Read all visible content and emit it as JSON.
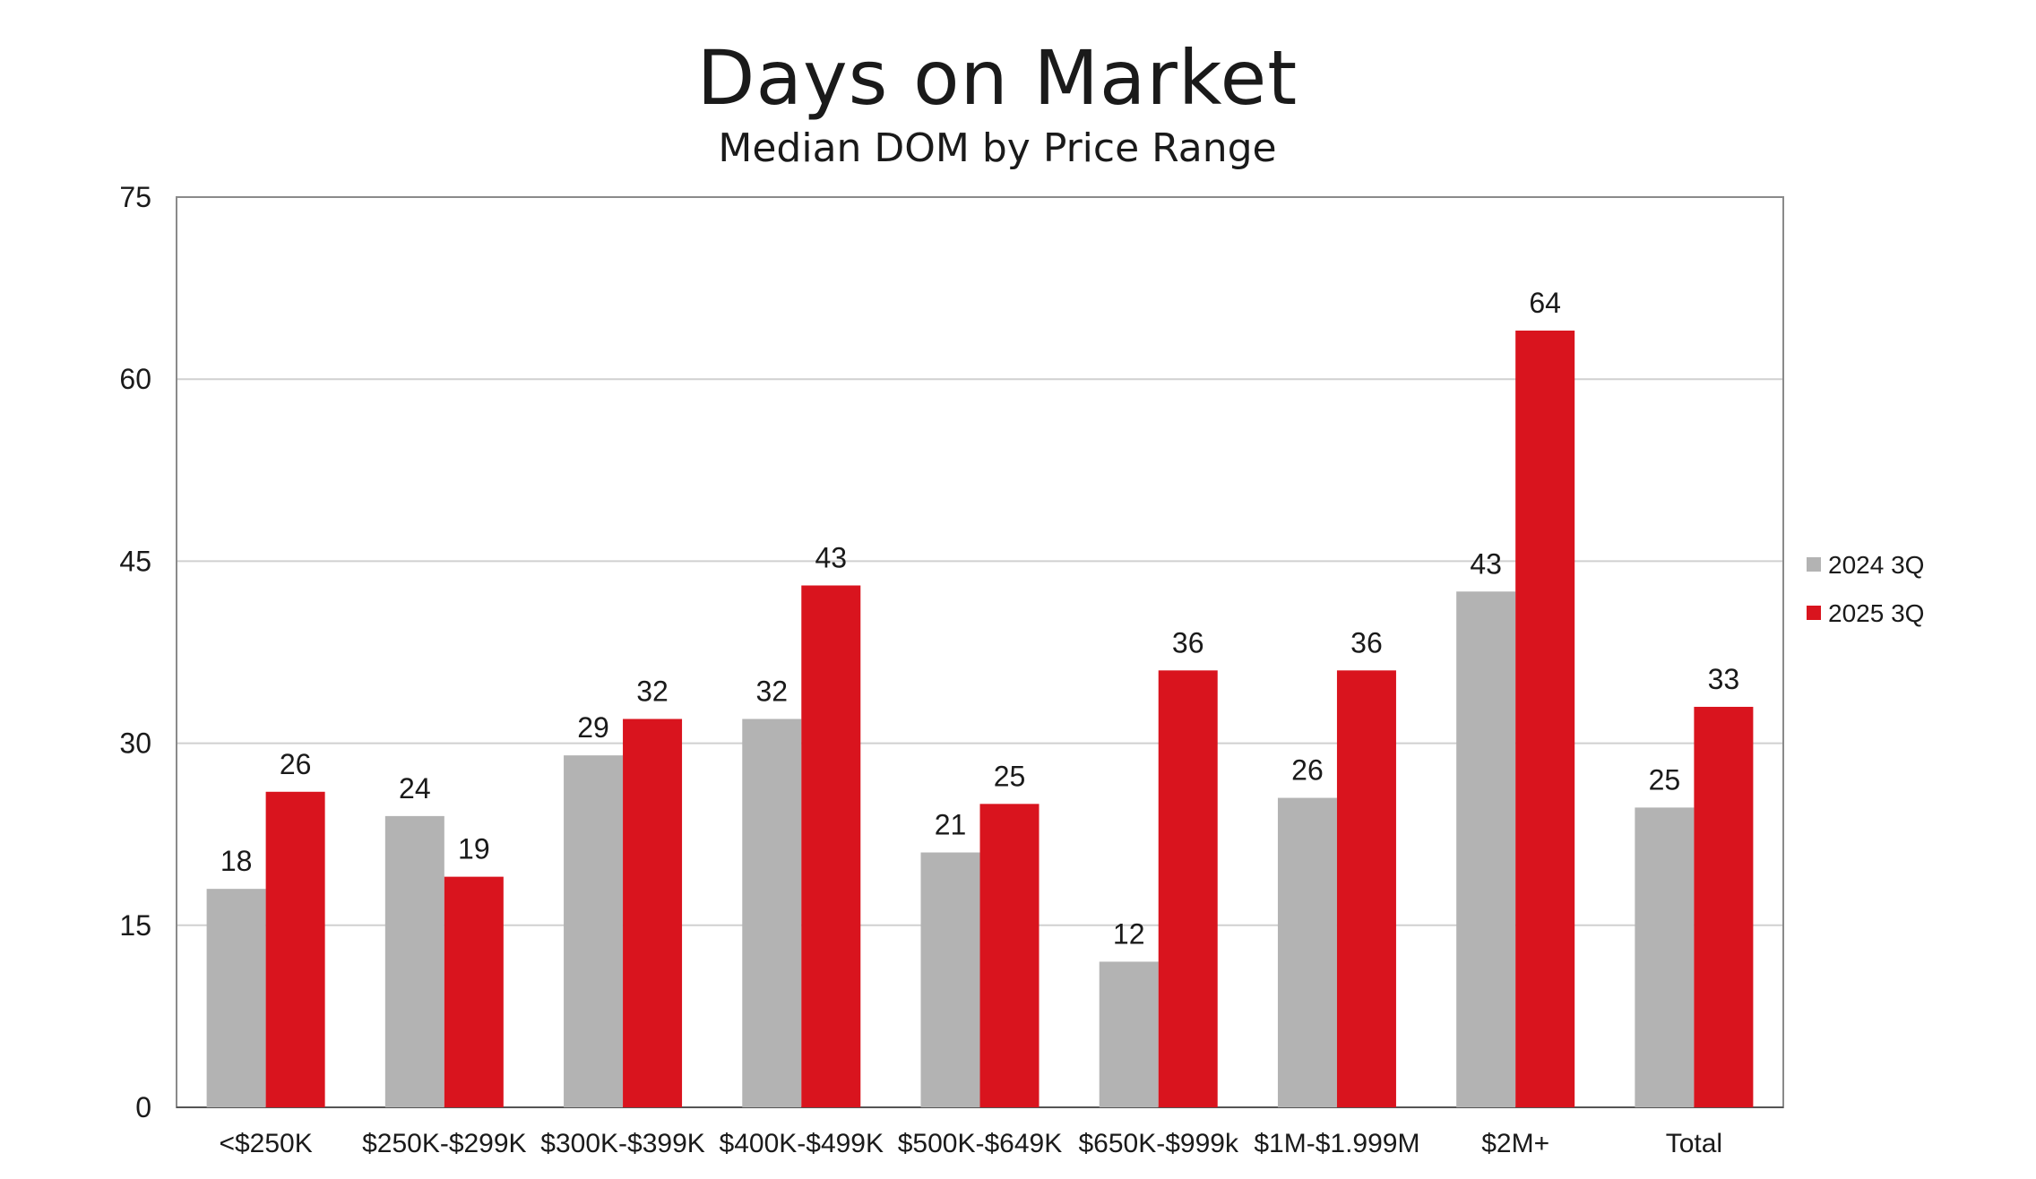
{
  "chart_data": {
    "type": "bar",
    "title": "Days on Market",
    "subtitle": "Median DOM by Price Range",
    "categories": [
      "<$250K",
      "$250K-$299K",
      "$300K-$399K",
      "$400K-$499K",
      "$500K-$649K",
      "$650K-$999k",
      "$1M-$1.999M",
      "$2M+",
      "Total"
    ],
    "series": [
      {
        "name": "2024 3Q",
        "color": "#b3b3b3",
        "values": [
          18,
          24,
          29,
          32,
          21,
          12,
          25.5,
          42.5,
          24.7
        ],
        "labels": [
          "18",
          "24",
          "29",
          "32",
          "21",
          "12",
          "26",
          "43",
          "25"
        ]
      },
      {
        "name": "2025 3Q",
        "color": "#d9141e",
        "values": [
          26,
          19,
          32,
          43,
          25,
          36,
          36,
          64,
          33
        ],
        "labels": [
          "26",
          "19",
          "32",
          "43",
          "25",
          "36",
          "36",
          "64",
          "33"
        ]
      }
    ],
    "yticks": [
      "0",
      "15",
      "30",
      "45",
      "60",
      "75"
    ],
    "ylim": [
      0,
      75
    ],
    "grid": true,
    "legend": "right"
  }
}
